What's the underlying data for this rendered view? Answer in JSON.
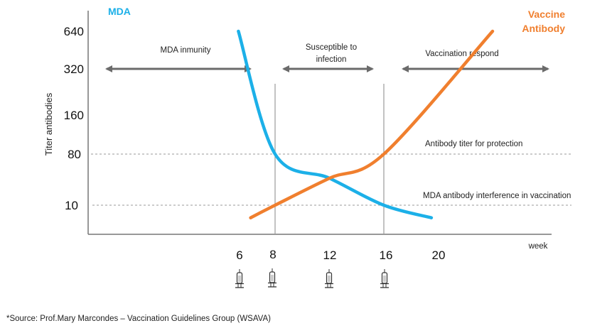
{
  "chart_data": {
    "type": "line",
    "title": "",
    "xlabel": "week",
    "ylabel": "Titer antibodies",
    "y_scale": "log2",
    "y_ticks": [
      640,
      320,
      160,
      80,
      10
    ],
    "x_ticks": [
      6,
      8,
      12,
      16,
      20
    ],
    "vaccination_weeks": [
      6,
      8,
      12,
      16
    ],
    "series": [
      {
        "name": "MDA",
        "color": "#1cb0e8",
        "points": [
          {
            "x": 5.3,
            "y": 640
          },
          {
            "x": 8,
            "y": 80
          },
          {
            "x": 12,
            "y": 30
          },
          {
            "x": 16,
            "y": 10
          },
          {
            "x": 19.5,
            "y": 6
          }
        ]
      },
      {
        "name": "Vaccine Antibody",
        "color": "#f07f2e",
        "points": [
          {
            "x": 6.2,
            "y": 6
          },
          {
            "x": 8,
            "y": 10
          },
          {
            "x": 12,
            "y": 30
          },
          {
            "x": 16,
            "y": 80
          },
          {
            "x": 24,
            "y": 640
          }
        ]
      }
    ],
    "reference_lines": [
      {
        "y": 80,
        "label": "Antibody titer for protection"
      },
      {
        "y": 10,
        "label": "MDA antibody interference in vaccination"
      }
    ],
    "vertical_markers": [
      8,
      16
    ],
    "annotations": [
      {
        "label": "MDA inmunity",
        "range": [
          5,
          18
        ]
      },
      {
        "label": "Susceptible to infection",
        "range": [
          8,
          16
        ]
      },
      {
        "label": "Vaccination respond",
        "range": [
          16,
          25
        ]
      }
    ],
    "legend": [
      {
        "label": "MDA",
        "placement": "top-left"
      },
      {
        "label": "Vaccine Antibody",
        "placement": "top-right"
      }
    ]
  },
  "labels": {
    "mda": "MDA",
    "vaccine_line1": "Vaccine",
    "vaccine_line2": "Antibody",
    "ylabel": "Titer antibodies",
    "xlabel": "week",
    "region_mda": "MDA inmunity",
    "region_susceptible_1": "Susceptible to",
    "region_susceptible_2": "infection",
    "region_vaccination": "Vaccination respond",
    "ref_protection": "Antibody titer for protection",
    "ref_interference": "MDA antibody interference in vaccination",
    "y_ticks": [
      "640",
      "320",
      "160",
      "80",
      "10"
    ],
    "x_ticks": [
      "6",
      "8",
      "12",
      "16",
      "20"
    ]
  },
  "source": "*Source: Prof.Mary  Marcondes – Vaccination Guidelines Group (WSAVA)"
}
